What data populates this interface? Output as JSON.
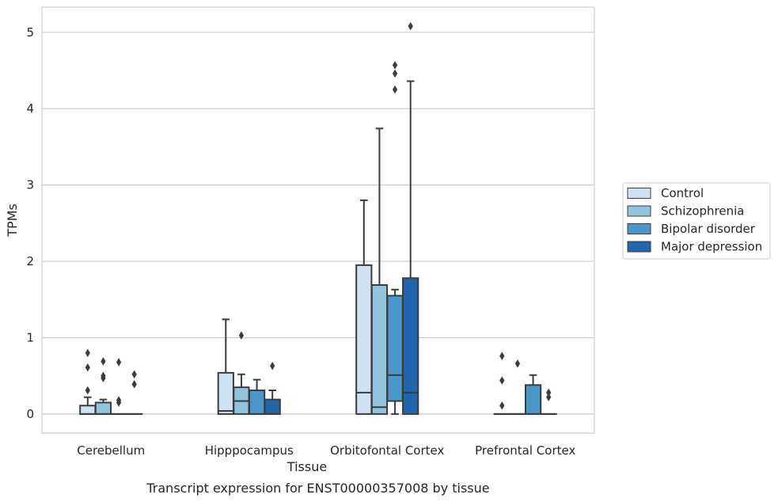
{
  "chart_data": {
    "type": "boxplot",
    "xlabel": "Tissue",
    "ylabel": "TPMs",
    "caption": "Transcript expression for ENST00000357008 by tissue",
    "ylim": [
      -0.25,
      5.33
    ],
    "yticks": [
      "0",
      "1",
      "2",
      "3",
      "4",
      "5"
    ],
    "grid": "horizontal",
    "legend_placement": "right",
    "categories": [
      "Cerebellum",
      "Hipppocampus",
      "Orbitofontal Cortex",
      "Prefrontal Cortex"
    ],
    "series": [
      {
        "name": "Control",
        "color": "#cfe1f2",
        "boxes": [
          {
            "whislo": 0,
            "q1": 0,
            "med": 0,
            "q3": 0.11,
            "whishi": 0.22,
            "fliers": [
              0.31,
              0.61,
              0.8
            ]
          },
          {
            "whislo": 0,
            "q1": 0,
            "med": 0.04,
            "q3": 0.54,
            "whishi": 1.24,
            "fliers": []
          },
          {
            "whislo": 0,
            "q1": 0,
            "med": 0.28,
            "q3": 1.95,
            "whishi": 2.8,
            "fliers": []
          },
          {
            "whislo": 0,
            "q1": 0,
            "med": 0,
            "q3": 0,
            "whishi": 0,
            "fliers": [
              0.11,
              0.44,
              0.76
            ]
          }
        ]
      },
      {
        "name": "Schizophrenia",
        "color": "#93c4de",
        "boxes": [
          {
            "whislo": 0,
            "q1": 0,
            "med": 0,
            "q3": 0.15,
            "whishi": 0.19,
            "fliers": [
              0.47,
              0.5,
              0.69
            ]
          },
          {
            "whislo": 0,
            "q1": 0,
            "med": 0.17,
            "q3": 0.35,
            "whishi": 0.52,
            "fliers": [
              1.03
            ]
          },
          {
            "whislo": 0,
            "q1": 0,
            "med": 0.09,
            "q3": 1.69,
            "whishi": 3.74,
            "fliers": []
          },
          {
            "whislo": 0,
            "q1": 0,
            "med": 0,
            "q3": 0,
            "whishi": 0,
            "fliers": [
              0.66
            ]
          }
        ]
      },
      {
        "name": "Bipolar disorder",
        "color": "#4a98c9",
        "boxes": [
          {
            "whislo": 0,
            "q1": 0,
            "med": 0,
            "q3": 0,
            "whishi": 0,
            "fliers": [
              0.15,
              0.18,
              0.68
            ]
          },
          {
            "whislo": 0,
            "q1": 0,
            "med": 0,
            "q3": 0.31,
            "whishi": 0.45,
            "fliers": []
          },
          {
            "whislo": 0,
            "q1": 0.17,
            "med": 0.51,
            "q3": 1.55,
            "whishi": 1.63,
            "fliers": [
              4.25,
              4.46,
              4.57
            ]
          },
          {
            "whislo": 0,
            "q1": 0,
            "med": 0,
            "q3": 0.38,
            "whishi": 0.51,
            "fliers": []
          }
        ]
      },
      {
        "name": "Major depression",
        "color": "#2166ac",
        "boxes": [
          {
            "whislo": 0,
            "q1": 0,
            "med": 0,
            "q3": 0,
            "whishi": 0,
            "fliers": [
              0.39,
              0.52
            ]
          },
          {
            "whislo": 0,
            "q1": 0,
            "med": 0,
            "q3": 0.19,
            "whishi": 0.31,
            "fliers": [
              0.63
            ]
          },
          {
            "whislo": 0,
            "q1": 0,
            "med": 0.28,
            "q3": 1.78,
            "whishi": 4.36,
            "fliers": [
              5.08
            ]
          },
          {
            "whislo": 0,
            "q1": 0,
            "med": 0,
            "q3": 0,
            "whishi": 0,
            "fliers": [
              0.22,
              0.28
            ]
          }
        ]
      }
    ]
  }
}
